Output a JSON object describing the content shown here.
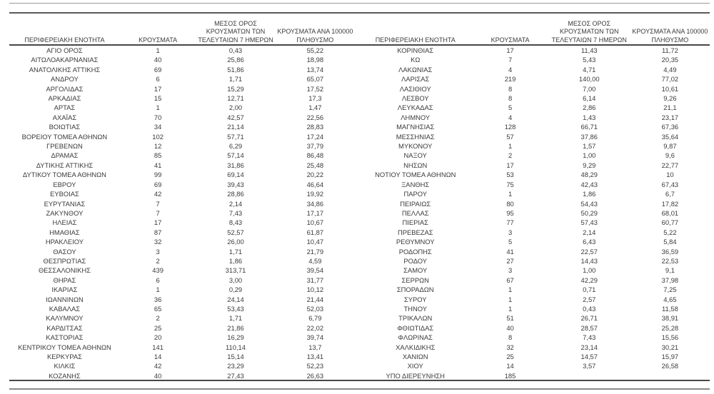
{
  "document": {
    "kind": "regional-covid-cases-table",
    "text_color": "#3a3a3a",
    "line_color_dark": "#474747",
    "line_color_light": "#9b9b9b"
  },
  "headers": {
    "region": "ΠΕΡΙΦΕΡΕΙΑΚΗ ΕΝΟΤΗΤΑ",
    "cases": "ΚΡΟΥΣΜΑΤΑ",
    "avg7": "ΜΕΣΟΣ ΟΡΟΣ\nΚΡΟΥΣΜΑΤΩΝ ΤΩΝ\nΤΕΛΕΥΤΑΙΩΝ 7 ΗΜΕΡΩΝ",
    "per100k": "ΚΡΟΥΣΜΑΤΑ ΑΝΑ 100000\nΠΛΗΘΥΣΜΟ"
  },
  "left_table": {
    "rows": [
      [
        "ΑΓΙΟ ΟΡΟΣ",
        "1",
        "0,43",
        "55,22"
      ],
      [
        "ΑΙΤΩΛΟΑΚΑΡΝΑΝΙΑΣ",
        "40",
        "25,86",
        "18,98"
      ],
      [
        "ΑΝΑΤΟΛΙΚΗΣ ΑΤΤΙΚΗΣ",
        "69",
        "51,86",
        "13,74"
      ],
      [
        "ΑΝΔΡΟΥ",
        "6",
        "1,71",
        "65,07"
      ],
      [
        "ΑΡΓΟΛΙΔΑΣ",
        "17",
        "15,29",
        "17,52"
      ],
      [
        "ΑΡΚΑΔΙΑΣ",
        "15",
        "12,71",
        "17,3"
      ],
      [
        "ΑΡΤΑΣ",
        "1",
        "2,00",
        "1,47"
      ],
      [
        "ΑΧΑΪΑΣ",
        "70",
        "42,57",
        "22,56"
      ],
      [
        "ΒΟΙΩΤΙΑΣ",
        "34",
        "21,14",
        "28,83"
      ],
      [
        "ΒΟΡΕΙΟΥ ΤΟΜΕΑ ΑΘΗΝΩΝ",
        "102",
        "57,71",
        "17,24"
      ],
      [
        "ΓΡΕΒΕΝΩΝ",
        "12",
        "6,29",
        "37,79"
      ],
      [
        "ΔΡΑΜΑΣ",
        "85",
        "57,14",
        "86,48"
      ],
      [
        "ΔΥΤΙΚΗΣ ΑΤΤΙΚΗΣ",
        "41",
        "31,86",
        "25,48"
      ],
      [
        "ΔΥΤΙΚΟΥ ΤΟΜΕΑ ΑΘΗΝΩΝ",
        "99",
        "69,14",
        "20,22"
      ],
      [
        "ΕΒΡΟΥ",
        "69",
        "39,43",
        "46,64"
      ],
      [
        "ΕΥΒΟΙΑΣ",
        "42",
        "28,86",
        "19,92"
      ],
      [
        "ΕΥΡΥΤΑΝΙΑΣ",
        "7",
        "2,14",
        "34,86"
      ],
      [
        "ΖΑΚΥΝΘΟΥ",
        "7",
        "7,43",
        "17,17"
      ],
      [
        "ΗΛΕΙΑΣ",
        "17",
        "8,43",
        "10,67"
      ],
      [
        "ΗΜΑΘΙΑΣ",
        "87",
        "52,57",
        "61,87"
      ],
      [
        "ΗΡΑΚΛΕΙΟΥ",
        "32",
        "26,00",
        "10,47"
      ],
      [
        "ΘΑΣΟΥ",
        "3",
        "1,71",
        "21,79"
      ],
      [
        "ΘΕΣΠΡΩΤΙΑΣ",
        "2",
        "1,86",
        "4,59"
      ],
      [
        "ΘΕΣΣΑΛΟΝΙΚΗΣ",
        "439",
        "313,71",
        "39,54"
      ],
      [
        "ΘΗΡΑΣ",
        "6",
        "3,00",
        "31,77"
      ],
      [
        "ΙΚΑΡΙΑΣ",
        "1",
        "0,29",
        "10,12"
      ],
      [
        "ΙΩΑΝΝΙΝΩΝ",
        "36",
        "24,14",
        "21,44"
      ],
      [
        "ΚΑΒΑΛΑΣ",
        "65",
        "53,43",
        "52,03"
      ],
      [
        "ΚΑΛΥΜΝΟΥ",
        "2",
        "1,71",
        "6,79"
      ],
      [
        "ΚΑΡΔΙΤΣΑΣ",
        "25",
        "21,86",
        "22,02"
      ],
      [
        "ΚΑΣΤΟΡΙΑΣ",
        "20",
        "16,29",
        "39,74"
      ],
      [
        "ΚΕΝΤΡΙΚΟΥ ΤΟΜΕΑ ΑΘΗΝΩΝ",
        "141",
        "110,14",
        "13,7"
      ],
      [
        "ΚΕΡΚΥΡΑΣ",
        "14",
        "15,14",
        "13,41"
      ],
      [
        "ΚΙΛΚΙΣ",
        "42",
        "23,29",
        "52,23"
      ],
      [
        "ΚΟΖΑΝΗΣ",
        "40",
        "27,43",
        "26,63"
      ]
    ]
  },
  "right_table": {
    "rows": [
      [
        "ΚΟΡΙΝΘΙΑΣ",
        "17",
        "11,43",
        "11,72"
      ],
      [
        "ΚΩ",
        "7",
        "5,43",
        "20,35"
      ],
      [
        "ΛΑΚΩΝΙΑΣ",
        "4",
        "4,71",
        "4,49"
      ],
      [
        "ΛΑΡΙΣΑΣ",
        "219",
        "140,00",
        "77,02"
      ],
      [
        "ΛΑΣΙΘΙΟΥ",
        "8",
        "7,00",
        "10,61"
      ],
      [
        "ΛΕΣΒΟΥ",
        "8",
        "6,14",
        "9,26"
      ],
      [
        "ΛΕΥΚΑΔΑΣ",
        "5",
        "2,86",
        "21,1"
      ],
      [
        "ΛΗΜΝΟΥ",
        "4",
        "1,43",
        "23,17"
      ],
      [
        "ΜΑΓΝΗΣΙΑΣ",
        "128",
        "66,71",
        "67,36"
      ],
      [
        "ΜΕΣΣΗΝΙΑΣ",
        "57",
        "37,86",
        "35,64"
      ],
      [
        "ΜΥΚΟΝΟΥ",
        "1",
        "1,57",
        "9,87"
      ],
      [
        "ΝΑΞΟΥ",
        "2",
        "1,00",
        "9,6"
      ],
      [
        "ΝΗΣΩΝ",
        "17",
        "9,29",
        "22,77"
      ],
      [
        "ΝΟΤΙΟΥ ΤΟΜΕΑ ΑΘΗΝΩΝ",
        "53",
        "48,29",
        "10"
      ],
      [
        "ΞΑΝΘΗΣ",
        "75",
        "42,43",
        "67,43"
      ],
      [
        "ΠΑΡΟΥ",
        "1",
        "1,86",
        "6,7"
      ],
      [
        "ΠΕΙΡΑΙΩΣ",
        "80",
        "54,43",
        "17,82"
      ],
      [
        "ΠΕΛΛΑΣ",
        "95",
        "50,29",
        "68,01"
      ],
      [
        "ΠΙΕΡΙΑΣ",
        "77",
        "57,43",
        "60,77"
      ],
      [
        "ΠΡΕΒΕΖΑΣ",
        "3",
        "2,14",
        "5,22"
      ],
      [
        "ΡΕΘΥΜΝΟΥ",
        "5",
        "6,43",
        "5,84"
      ],
      [
        "ΡΟΔΟΠΗΣ",
        "41",
        "22,57",
        "36,59"
      ],
      [
        "ΡΟΔΟΥ",
        "27",
        "14,43",
        "22,53"
      ],
      [
        "ΣΑΜΟΥ",
        "3",
        "1,00",
        "9,1"
      ],
      [
        "ΣΕΡΡΩΝ",
        "67",
        "42,29",
        "37,98"
      ],
      [
        "ΣΠΟΡΑΔΩΝ",
        "1",
        "0,71",
        "7,25"
      ],
      [
        "ΣΥΡΟΥ",
        "1",
        "2,57",
        "4,65"
      ],
      [
        "ΤΗΝΟΥ",
        "1",
        "0,43",
        "11,58"
      ],
      [
        "ΤΡΙΚΑΛΩΝ",
        "51",
        "26,71",
        "38,91"
      ],
      [
        "ΦΘΙΩΤΙΔΑΣ",
        "40",
        "28,57",
        "25,28"
      ],
      [
        "ΦΛΩΡΙΝΑΣ",
        "8",
        "7,43",
        "15,56"
      ],
      [
        "ΧΑΛΚΙΔΙΚΗΣ",
        "32",
        "23,14",
        "30,21"
      ],
      [
        "ΧΑΝΙΩΝ",
        "25",
        "14,57",
        "15,97"
      ],
      [
        "ΧΙΟΥ",
        "14",
        "3,57",
        "26,58"
      ],
      [
        "ΥΠΟ ΔΙΕΡΕΥΝΗΣΗ",
        "185",
        "",
        ""
      ]
    ]
  }
}
